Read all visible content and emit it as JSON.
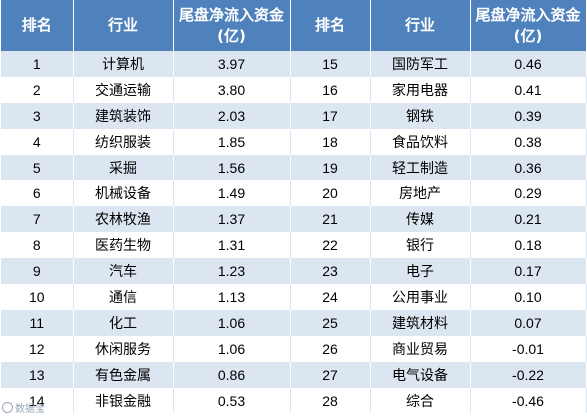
{
  "table": {
    "headers": [
      "排名",
      "行业",
      "尾盘净流入资金(亿)",
      "排名",
      "行业",
      "尾盘净流入资金(亿)"
    ],
    "rows": [
      [
        "1",
        "计算机",
        "3.97",
        "15",
        "国防军工",
        "0.46"
      ],
      [
        "2",
        "交通运输",
        "3.80",
        "16",
        "家用电器",
        "0.41"
      ],
      [
        "3",
        "建筑装饰",
        "2.03",
        "17",
        "钢铁",
        "0.39"
      ],
      [
        "4",
        "纺织服装",
        "1.85",
        "18",
        "食品饮料",
        "0.38"
      ],
      [
        "5",
        "采掘",
        "1.56",
        "19",
        "轻工制造",
        "0.36"
      ],
      [
        "6",
        "机械设备",
        "1.49",
        "20",
        "房地产",
        "0.29"
      ],
      [
        "7",
        "农林牧渔",
        "1.37",
        "21",
        "传媒",
        "0.21"
      ],
      [
        "8",
        "医药生物",
        "1.31",
        "22",
        "银行",
        "0.18"
      ],
      [
        "9",
        "汽车",
        "1.23",
        "23",
        "电子",
        "0.17"
      ],
      [
        "10",
        "通信",
        "1.13",
        "24",
        "公用事业",
        "0.10"
      ],
      [
        "11",
        "化工",
        "1.06",
        "25",
        "建筑材料",
        "0.07"
      ],
      [
        "12",
        "休闲服务",
        "1.06",
        "26",
        "商业贸易",
        "-0.01"
      ],
      [
        "13",
        "有色金属",
        "0.86",
        "27",
        "电气设备",
        "-0.22"
      ],
      [
        "14",
        "非银金融",
        "0.53",
        "28",
        "综合",
        "-0.46"
      ]
    ]
  },
  "watermark": {
    "text": "数据宝",
    "icon": "camera-ring-icon"
  },
  "colors": {
    "header_bg": "#4f81bd",
    "band_bg": "#dce6f1",
    "header_text": "#ffffff"
  }
}
